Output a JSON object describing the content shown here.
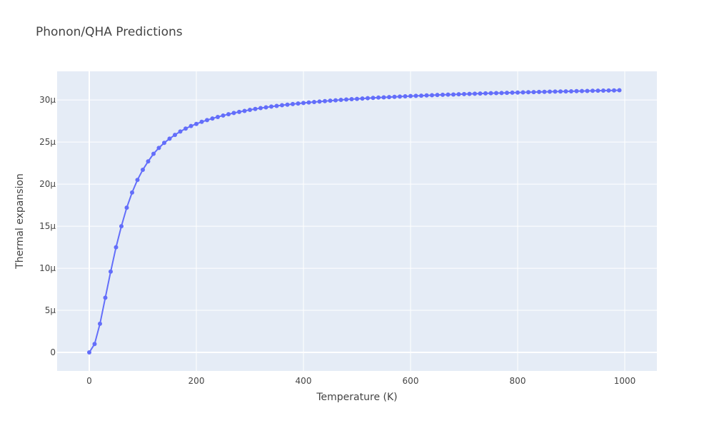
{
  "chart_data": {
    "type": "line",
    "title": "Phonon/QHA Predictions",
    "xlabel": "Temperature (K)",
    "ylabel": "Thermal expansion",
    "xlim": [
      -60,
      1060
    ],
    "ylim": [
      -2.2,
      33.4
    ],
    "grid": true,
    "legend": "none",
    "colors": {
      "plot_bg": "#e5ecf6",
      "grid": "#ffffff",
      "line": "#636efa",
      "text": "#444444"
    },
    "x_ticks": [
      {
        "value": 0,
        "label": "0"
      },
      {
        "value": 200,
        "label": "200"
      },
      {
        "value": 400,
        "label": "400"
      },
      {
        "value": 600,
        "label": "600"
      },
      {
        "value": 800,
        "label": "800"
      },
      {
        "value": 1000,
        "label": "1000"
      }
    ],
    "y_ticks": [
      {
        "value": 0,
        "label": "0"
      },
      {
        "value": 5,
        "label": "5μ"
      },
      {
        "value": 10,
        "label": "10μ"
      },
      {
        "value": 15,
        "label": "15μ"
      },
      {
        "value": 20,
        "label": "20μ"
      },
      {
        "value": 25,
        "label": "25μ"
      },
      {
        "value": 30,
        "label": "30μ"
      }
    ],
    "series": [
      {
        "y_unit": "μ",
        "x": [
          0,
          10,
          20,
          30,
          40,
          50,
          60,
          70,
          80,
          90,
          100,
          110,
          120,
          130,
          140,
          150,
          160,
          170,
          180,
          190,
          200,
          210,
          220,
          230,
          240,
          250,
          260,
          270,
          280,
          290,
          300,
          310,
          320,
          330,
          340,
          350,
          360,
          370,
          380,
          390,
          400,
          410,
          420,
          430,
          440,
          450,
          460,
          470,
          480,
          490,
          500,
          510,
          520,
          530,
          540,
          550,
          560,
          570,
          580,
          590,
          600,
          610,
          620,
          630,
          640,
          650,
          660,
          670,
          680,
          690,
          700,
          710,
          720,
          730,
          740,
          750,
          760,
          770,
          780,
          790,
          800,
          810,
          820,
          830,
          840,
          850,
          860,
          870,
          880,
          890,
          900,
          910,
          920,
          930,
          940,
          950,
          960,
          970,
          980,
          990
        ],
        "y": [
          0,
          1.0,
          3.4,
          6.5,
          9.6,
          12.5,
          15.0,
          17.2,
          19.0,
          20.5,
          21.7,
          22.7,
          23.6,
          24.3,
          24.9,
          25.4,
          25.85,
          26.25,
          26.6,
          26.9,
          27.15,
          27.4,
          27.6,
          27.8,
          27.98,
          28.15,
          28.3,
          28.45,
          28.58,
          28.7,
          28.82,
          28.93,
          29.03,
          29.12,
          29.21,
          29.29,
          29.37,
          29.44,
          29.51,
          29.58,
          29.64,
          29.7,
          29.76,
          29.81,
          29.86,
          29.91,
          29.96,
          30.01,
          30.05,
          30.09,
          30.13,
          30.17,
          30.21,
          30.24,
          30.28,
          30.31,
          30.34,
          30.37,
          30.4,
          30.43,
          30.46,
          30.49,
          30.51,
          30.54,
          30.56,
          30.59,
          30.61,
          30.63,
          30.65,
          30.68,
          30.7,
          30.72,
          30.74,
          30.76,
          30.78,
          30.8,
          30.81,
          30.83,
          30.85,
          30.87,
          30.88,
          30.9,
          30.92,
          30.93,
          30.95,
          30.96,
          30.98,
          30.99,
          31.01,
          31.02,
          31.03,
          31.05,
          31.06,
          31.07,
          31.09,
          31.1,
          31.11,
          31.12,
          31.13,
          31.15
        ]
      }
    ]
  }
}
